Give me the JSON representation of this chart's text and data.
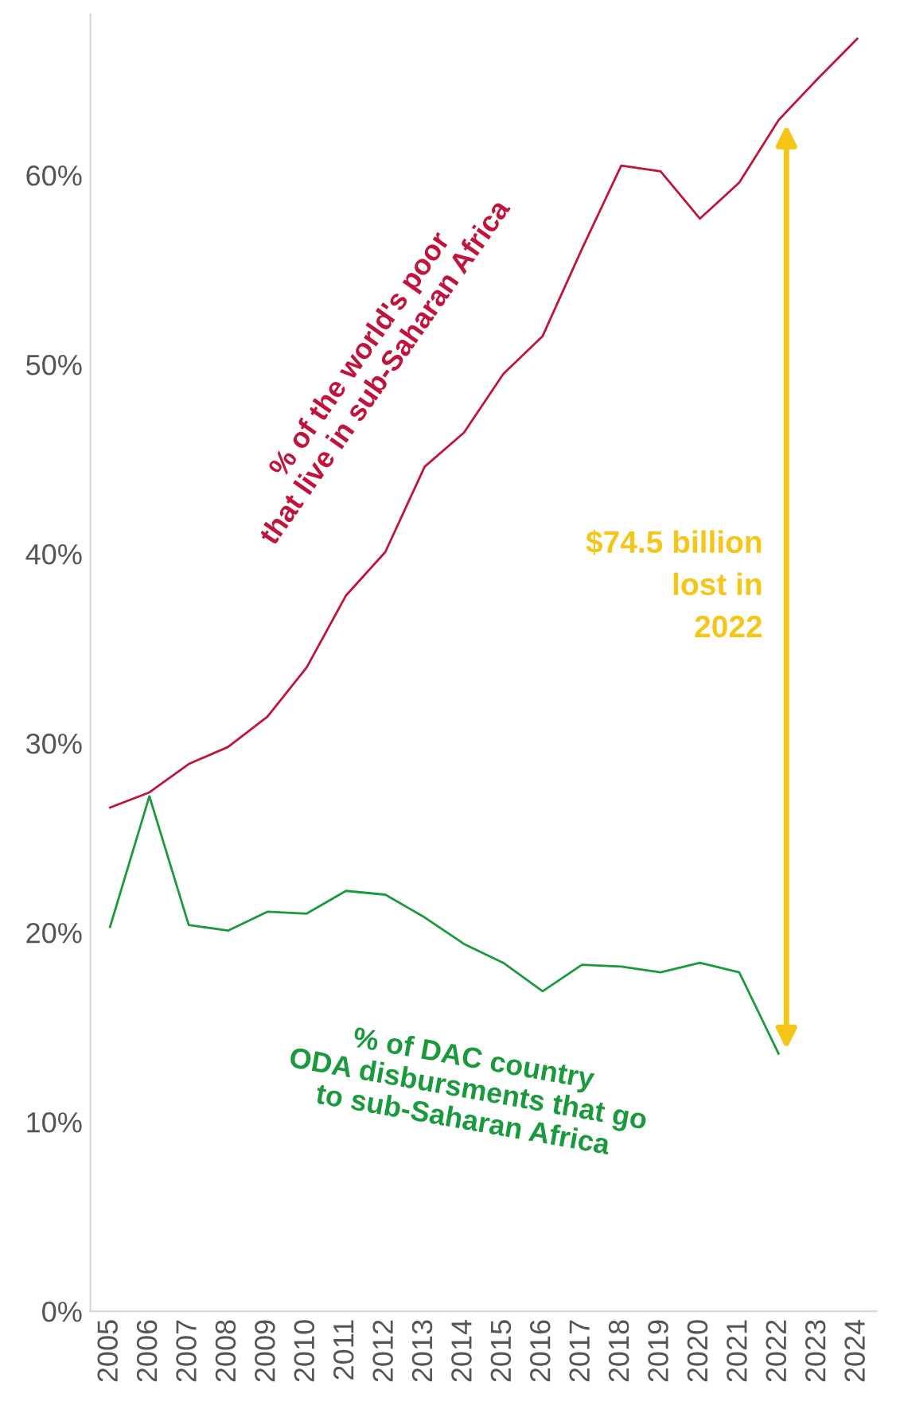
{
  "chart_data": {
    "type": "line",
    "x": [
      2005,
      2006,
      2007,
      2008,
      2009,
      2010,
      2011,
      2012,
      2013,
      2014,
      2015,
      2016,
      2017,
      2018,
      2019,
      2020,
      2021,
      2022,
      2023,
      2024
    ],
    "series": [
      {
        "name": "% of the world's poor that live in sub-Saharan Africa",
        "color": "#c0143c",
        "values": [
          26.6,
          27.4,
          28.9,
          29.8,
          31.4,
          34.0,
          37.8,
          40.1,
          44.6,
          46.4,
          49.5,
          51.5,
          56.1,
          60.5,
          60.2,
          57.7,
          59.6,
          62.9,
          65.1,
          67.2
        ]
      },
      {
        "name": "% of DAC country ODA disbursments that go to sub-Saharan Africa",
        "color": "#1a9a3c",
        "values": [
          20.3,
          27.2,
          20.4,
          20.1,
          21.1,
          21.0,
          22.2,
          22.0,
          20.8,
          19.4,
          18.4,
          16.9,
          18.3,
          18.2,
          17.9,
          18.4,
          17.9,
          13.6,
          null,
          null
        ]
      }
    ],
    "annotations": [
      "$74.5 billion lost in 2022"
    ],
    "xlim": [
      2004.5,
      2024.5
    ],
    "xticks": [
      2005,
      2006,
      2007,
      2008,
      2009,
      2010,
      2011,
      2012,
      2013,
      2014,
      2015,
      2016,
      2017,
      2018,
      2019,
      2020,
      2021,
      2022,
      2023,
      2024
    ],
    "ylim": [
      0,
      68.5
    ],
    "yticks": [
      {
        "value": 0,
        "label": "0%"
      },
      {
        "value": 10,
        "label": "10%"
      },
      {
        "value": 20,
        "label": "20%"
      },
      {
        "value": 30,
        "label": "30%"
      },
      {
        "value": 40,
        "label": "40%"
      },
      {
        "value": 50,
        "label": "50%"
      },
      {
        "value": 60,
        "label": "60%"
      }
    ],
    "grid": false,
    "legend": false,
    "marker": "none",
    "line_style": "solid"
  }
}
